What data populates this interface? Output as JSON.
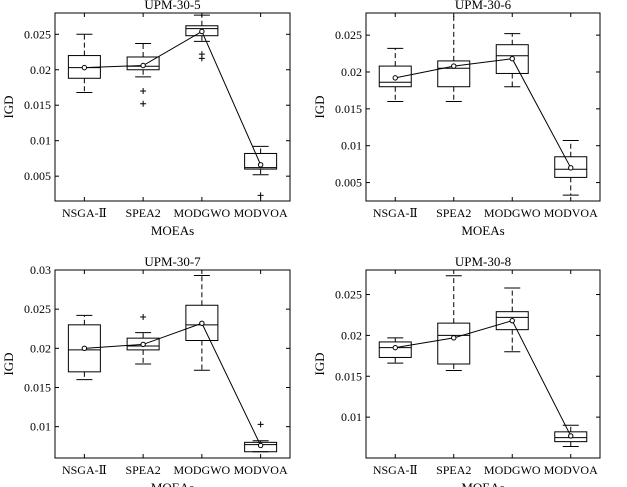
{
  "chart_data": [
    {
      "type": "box",
      "title": "UPM-30-5",
      "xlabel": "MOEAs",
      "ylabel": "IGD",
      "categories": [
        "NSGA-Ⅱ",
        "SPEA2",
        "MODGWO",
        "MODVOA"
      ],
      "ylim": [
        0.0015,
        0.028
      ],
      "yticks": [
        0.005,
        0.01,
        0.015,
        0.02,
        0.025
      ],
      "ytick_labels": [
        "0.005",
        "0.01",
        "0.015",
        "0.02",
        "0.025"
      ],
      "boxes": [
        {
          "whisker_low": 0.0168,
          "q1": 0.0188,
          "median": 0.0203,
          "q3": 0.022,
          "whisker_high": 0.025,
          "mean": 0.0203,
          "outliers": []
        },
        {
          "whisker_low": 0.019,
          "q1": 0.02,
          "median": 0.0205,
          "q3": 0.0218,
          "whisker_high": 0.0237,
          "mean": 0.0206,
          "outliers": [
            0.017,
            0.0152
          ]
        },
        {
          "whisker_low": 0.024,
          "q1": 0.0248,
          "median": 0.0258,
          "q3": 0.0262,
          "whisker_high": 0.0277,
          "mean": 0.0254,
          "outliers": [
            0.0222,
            0.0216
          ]
        },
        {
          "whisker_low": 0.0052,
          "q1": 0.006,
          "median": 0.0062,
          "q3": 0.0082,
          "whisker_high": 0.0092,
          "mean": 0.0066,
          "outliers": [
            0.0023
          ]
        }
      ]
    },
    {
      "type": "box",
      "title": "UPM-30-6",
      "xlabel": "MOEAs",
      "ylabel": "IGD",
      "categories": [
        "NSGA-Ⅱ",
        "SPEA2",
        "MODGWO",
        "MODVOA"
      ],
      "ylim": [
        0.0025,
        0.028
      ],
      "yticks": [
        0.005,
        0.01,
        0.015,
        0.02,
        0.025
      ],
      "ytick_labels": [
        "0.005",
        "0.01",
        "0.015",
        "0.02",
        "0.025"
      ],
      "boxes": [
        {
          "whisker_low": 0.016,
          "q1": 0.018,
          "median": 0.0186,
          "q3": 0.0208,
          "whisker_high": 0.0232,
          "mean": 0.0192,
          "outliers": []
        },
        {
          "whisker_low": 0.016,
          "q1": 0.018,
          "median": 0.0205,
          "q3": 0.0215,
          "whisker_high": 0.028,
          "mean": 0.0208,
          "outliers": []
        },
        {
          "whisker_low": 0.018,
          "q1": 0.0198,
          "median": 0.0222,
          "q3": 0.0237,
          "whisker_high": 0.0252,
          "mean": 0.0218,
          "outliers": []
        },
        {
          "whisker_low": 0.0033,
          "q1": 0.0057,
          "median": 0.0068,
          "q3": 0.0085,
          "whisker_high": 0.0107,
          "mean": 0.007,
          "outliers": []
        }
      ]
    },
    {
      "type": "box",
      "title": "UPM-30-7",
      "xlabel": "MOEAs",
      "ylabel": "IGD",
      "categories": [
        "NSGA-Ⅱ",
        "SPEA2",
        "MODGWO",
        "MODVOA"
      ],
      "ylim": [
        0.006,
        0.03
      ],
      "yticks": [
        0.01,
        0.015,
        0.02,
        0.025,
        0.03
      ],
      "ytick_labels": [
        "0.01",
        "0.015",
        "0.02",
        "0.025",
        "0.03"
      ],
      "boxes": [
        {
          "whisker_low": 0.016,
          "q1": 0.017,
          "median": 0.0198,
          "q3": 0.023,
          "whisker_high": 0.0242,
          "mean": 0.02,
          "outliers": []
        },
        {
          "whisker_low": 0.018,
          "q1": 0.0198,
          "median": 0.0203,
          "q3": 0.0213,
          "whisker_high": 0.022,
          "mean": 0.0205,
          "outliers": [
            0.024
          ]
        },
        {
          "whisker_low": 0.0172,
          "q1": 0.021,
          "median": 0.023,
          "q3": 0.0255,
          "whisker_high": 0.0293,
          "mean": 0.0232,
          "outliers": []
        },
        {
          "whisker_low": 0.0068,
          "q1": 0.0068,
          "median": 0.0077,
          "q3": 0.008,
          "whisker_high": 0.0082,
          "mean": 0.0076,
          "outliers": [
            0.0103
          ]
        }
      ]
    },
    {
      "type": "box",
      "title": "UPM-30-8",
      "xlabel": "MOEAs",
      "ylabel": "IGD",
      "categories": [
        "NSGA-Ⅱ",
        "SPEA2",
        "MODGWO",
        "MODVOA"
      ],
      "ylim": [
        0.005,
        0.028
      ],
      "yticks": [
        0.01,
        0.015,
        0.02,
        0.025
      ],
      "ytick_labels": [
        "0.01",
        "0.015",
        "0.02",
        "0.025"
      ],
      "boxes": [
        {
          "whisker_low": 0.0166,
          "q1": 0.0173,
          "median": 0.0185,
          "q3": 0.0192,
          "whisker_high": 0.0197,
          "mean": 0.0185,
          "outliers": []
        },
        {
          "whisker_low": 0.0157,
          "q1": 0.0165,
          "median": 0.02,
          "q3": 0.0215,
          "whisker_high": 0.0273,
          "mean": 0.0197,
          "outliers": []
        },
        {
          "whisker_low": 0.018,
          "q1": 0.0207,
          "median": 0.0222,
          "q3": 0.0229,
          "whisker_high": 0.0258,
          "mean": 0.0218,
          "outliers": []
        },
        {
          "whisker_low": 0.0064,
          "q1": 0.007,
          "median": 0.0075,
          "q3": 0.0082,
          "whisker_high": 0.009,
          "mean": 0.0077,
          "outliers": []
        }
      ]
    }
  ]
}
